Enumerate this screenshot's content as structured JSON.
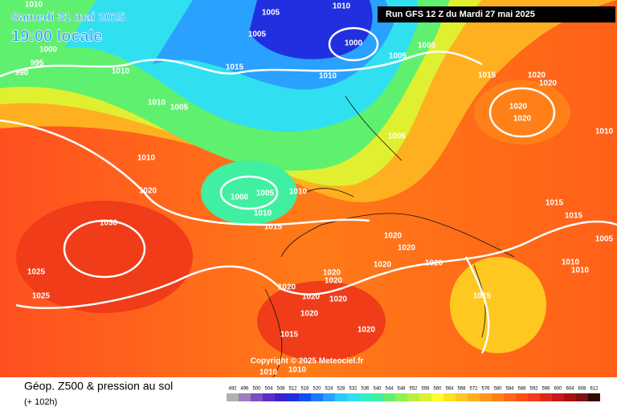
{
  "header": {
    "date": "Samedi 31 mai 2025",
    "time": "19:00 locale",
    "run": "Run GFS 12 Z du Mardi 27 mai 2025",
    "copyright": "Copyright © 2025 Meteociel.fr"
  },
  "footer": {
    "title": "Géop. Z500 & pression au sol",
    "lead": "(+ 102h)"
  },
  "isobar_labels": [
    "1010",
    "1005",
    "1010",
    "1005",
    "1000",
    "1005",
    "1000",
    "1000",
    "995",
    "990",
    "1010",
    "1015",
    "1010",
    "1015",
    "1020",
    "1020",
    "1010",
    "1005",
    "1020",
    "1020",
    "1005",
    "1010",
    "1010",
    "1020",
    "1000",
    "1005",
    "1010",
    "1010",
    "1015",
    "1015",
    "1030",
    "1015",
    "1020",
    "1020",
    "1005",
    "1020",
    "1010",
    "1010",
    "1020",
    "1020",
    "1020",
    "1025",
    "1020",
    "1025",
    "1020",
    "1020",
    "1015",
    "1020",
    "1015",
    "1020",
    "1010",
    "1010"
  ],
  "scale": {
    "values": [
      492,
      496,
      500,
      504,
      508,
      512,
      516,
      520,
      524,
      528,
      532,
      536,
      540,
      544,
      548,
      552,
      556,
      560,
      564,
      568,
      572,
      576,
      580,
      584,
      588,
      592,
      596,
      600,
      604,
      608,
      612
    ],
    "colors": [
      "#b0b0b0",
      "#9a7fb8",
      "#7a50c0",
      "#5a30c8",
      "#3a20d0",
      "#2030e0",
      "#1050f0",
      "#1e78ff",
      "#2aa0ff",
      "#30c8ff",
      "#30e0f0",
      "#30f0c8",
      "#40f0a0",
      "#60f070",
      "#90f050",
      "#b8f040",
      "#e0f030",
      "#ffff30",
      "#ffe020",
      "#ffc820",
      "#ffb020",
      "#ff9818",
      "#ff8018",
      "#ff6818",
      "#ff5018",
      "#f03c18",
      "#e02818",
      "#c81818",
      "#a81010",
      "#801010",
      "#300808"
    ]
  }
}
